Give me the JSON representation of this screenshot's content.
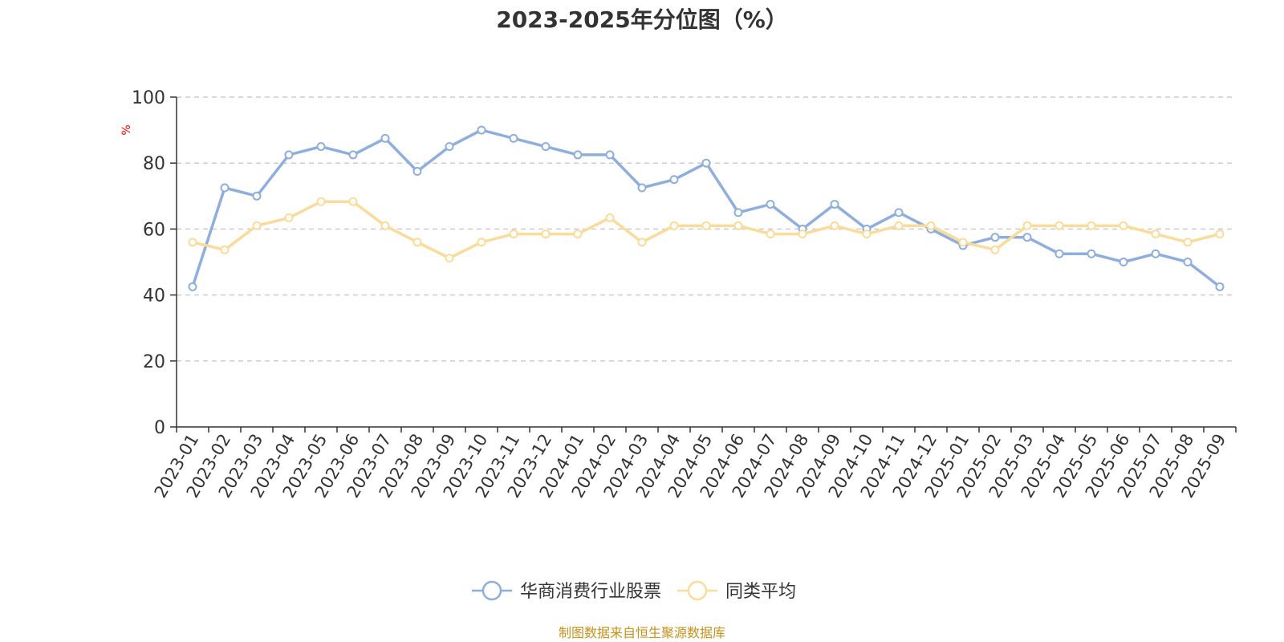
{
  "chart_data": {
    "type": "line",
    "title": "2023-2025年分位图（%）",
    "ylabel": "%",
    "xlabel": "",
    "ylim": [
      0,
      100
    ],
    "yticks": [
      0,
      20,
      40,
      60,
      80,
      100
    ],
    "grid": true,
    "legend_position": "bottom",
    "categories": [
      "2023-01",
      "2023-02",
      "2023-03",
      "2023-04",
      "2023-05",
      "2023-06",
      "2023-07",
      "2023-08",
      "2023-09",
      "2023-10",
      "2023-11",
      "2023-12",
      "2024-01",
      "2024-02",
      "2024-03",
      "2024-04",
      "2024-05",
      "2024-06",
      "2024-07",
      "2024-08",
      "2024-09",
      "2024-10",
      "2024-11",
      "2024-12",
      "2025-01",
      "2025-02",
      "2025-03",
      "2025-04",
      "2025-05",
      "2025-06",
      "2025-07",
      "2025-08",
      "2025-09"
    ],
    "series": [
      {
        "name": "华商消费行业股票",
        "color": "#8eaede",
        "values": [
          42.5,
          72.5,
          70,
          82.5,
          85,
          82.5,
          87.5,
          77.5,
          85,
          90,
          87.5,
          85,
          82.5,
          82.5,
          72.5,
          75,
          80,
          65,
          67.5,
          60,
          67.5,
          60,
          65,
          60,
          55,
          57.5,
          57.5,
          52.5,
          52.5,
          50,
          52.5,
          50,
          42.5
        ]
      },
      {
        "name": "同类平均",
        "color": "#fbdb9a",
        "values": [
          56,
          53.7,
          61,
          63.4,
          68.3,
          68.3,
          61,
          56,
          51.2,
          56,
          58.5,
          58.5,
          58.5,
          63.4,
          56,
          61,
          61,
          61,
          58.5,
          58.5,
          61,
          58.5,
          61,
          61,
          56,
          53.7,
          61,
          61,
          61,
          61,
          58.5,
          56,
          58.5
        ]
      }
    ]
  },
  "source_note": "制图数据来自恒生聚源数据库",
  "colors": {
    "axis": "#333333",
    "grid": "#cccccc",
    "ylabel": "#ff0000",
    "source": "#c8911a"
  }
}
